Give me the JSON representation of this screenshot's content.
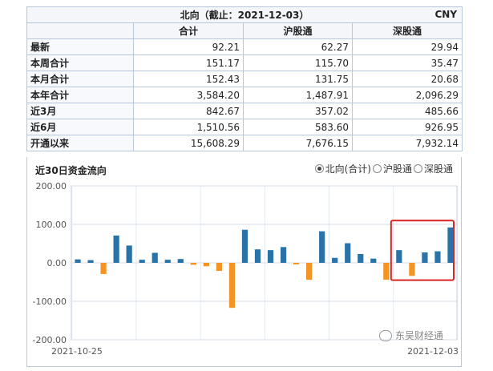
{
  "table": {
    "title": "北向（截止：2021-12-03）",
    "currency": "CNY",
    "columns": [
      "合计",
      "沪股通",
      "深股通"
    ],
    "rows": [
      {
        "label": "最新",
        "values": [
          "92.21",
          "62.27",
          "29.94"
        ]
      },
      {
        "label": "本周合计",
        "values": [
          "151.17",
          "115.70",
          "35.47"
        ]
      },
      {
        "label": "本月合计",
        "values": [
          "152.43",
          "131.75",
          "20.68"
        ]
      },
      {
        "label": "本年合计",
        "values": [
          "3,584.20",
          "1,487.91",
          "2,096.29"
        ]
      },
      {
        "label": "近3月",
        "values": [
          "842.67",
          "357.02",
          "485.66"
        ]
      },
      {
        "label": "近6月",
        "values": [
          "1,510.56",
          "583.60",
          "926.95"
        ]
      },
      {
        "label": "开通以来",
        "values": [
          "15,608.29",
          "7,676.15",
          "7,932.14"
        ]
      }
    ]
  },
  "chart": {
    "title": "近30日资金流向",
    "legend": [
      {
        "label": "北向(合计)",
        "selected": true
      },
      {
        "label": "沪股通",
        "selected": false
      },
      {
        "label": "深股通",
        "selected": false
      }
    ],
    "watermark": "东吴财经通"
  },
  "chart_data": {
    "type": "bar",
    "x_start_label": "2021-10-25",
    "x_end_label": "2021-12-03",
    "yticks": [
      "200.00",
      "100.00",
      "0.00",
      "-100.00",
      "-200.00"
    ],
    "ylim": [
      -200,
      200
    ],
    "values": [
      9,
      7,
      -29,
      71,
      45,
      8,
      26,
      8,
      10,
      -5,
      -9,
      -21,
      -117,
      86,
      35,
      33,
      41,
      -4,
      -44,
      82,
      13,
      51,
      23,
      11,
      -44,
      33,
      -34,
      27,
      30,
      92
    ],
    "colors": {
      "positive": "#2b73a6",
      "negative": "#f39423"
    },
    "highlight_box_color": "#d92424",
    "grid": true
  }
}
